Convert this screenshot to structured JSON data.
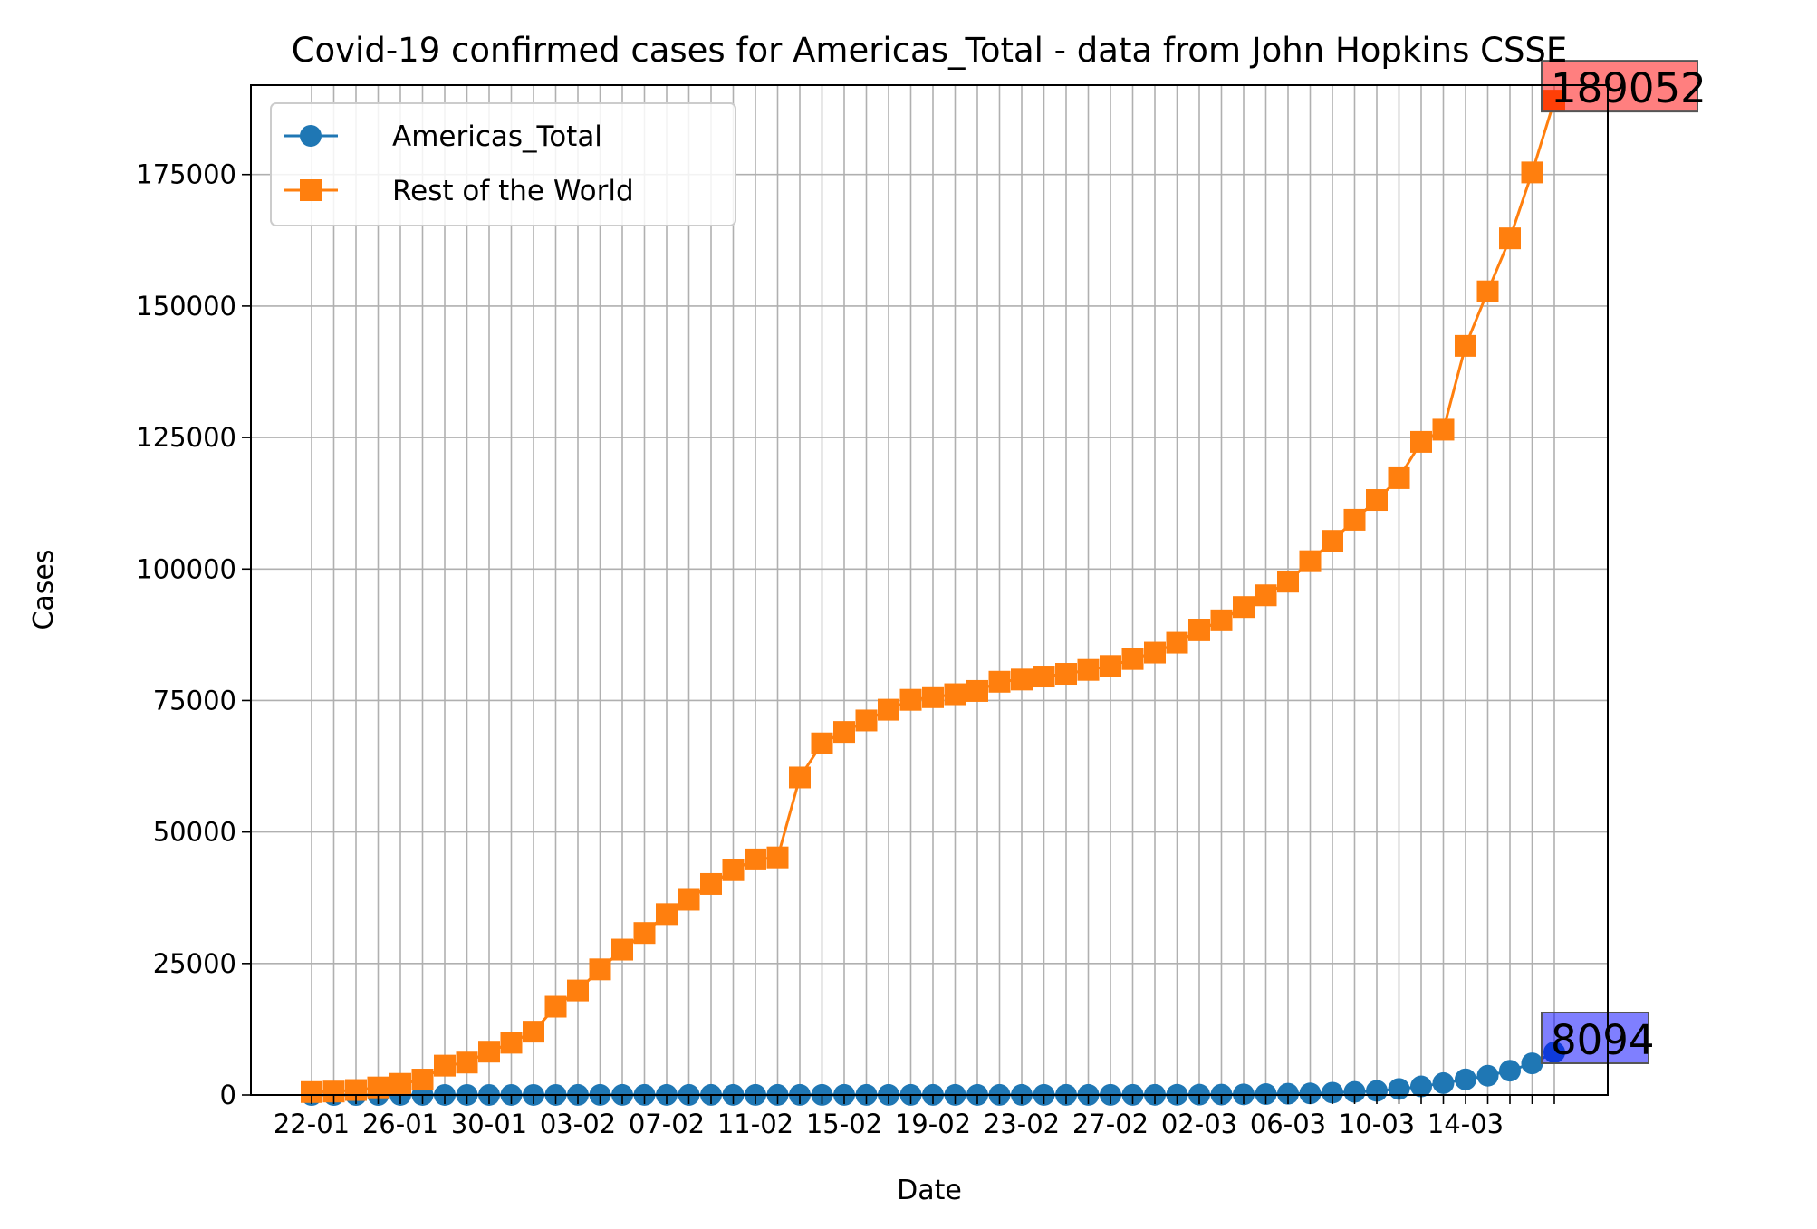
{
  "chart_data": {
    "type": "line",
    "title": "Covid-19 confirmed cases for Americas_Total - data from John Hopkins CSSE",
    "xlabel": "Date",
    "ylabel": "Cases",
    "ylim": [
      0,
      192000
    ],
    "yticks": [
      0,
      25000,
      50000,
      75000,
      100000,
      125000,
      150000,
      175000
    ],
    "grid": true,
    "legend_position": "top-left",
    "x": [
      "22-01",
      "23-01",
      "24-01",
      "25-01",
      "26-01",
      "27-01",
      "28-01",
      "29-01",
      "30-01",
      "31-01",
      "01-02",
      "02-02",
      "03-02",
      "04-02",
      "05-02",
      "06-02",
      "07-02",
      "08-02",
      "09-02",
      "10-02",
      "11-02",
      "12-02",
      "13-02",
      "14-02",
      "15-02",
      "16-02",
      "17-02",
      "18-02",
      "19-02",
      "20-02",
      "21-02",
      "22-02",
      "23-02",
      "24-02",
      "25-02",
      "26-02",
      "27-02",
      "28-02",
      "29-02",
      "01-03",
      "02-03",
      "03-03",
      "04-03",
      "05-03",
      "06-03",
      "07-03",
      "08-03",
      "09-03",
      "10-03",
      "11-03",
      "12-03",
      "13-03",
      "14-03",
      "15-03",
      "16-03",
      "17-03",
      "18-03"
    ],
    "xtick_labels": [
      "22-01",
      "26-01",
      "30-01",
      "03-02",
      "07-02",
      "11-02",
      "15-02",
      "19-02",
      "23-02",
      "27-02",
      "02-03",
      "06-03",
      "10-03",
      "14-03"
    ],
    "series": [
      {
        "name": "Americas_Total",
        "color": "#1f77b4",
        "marker": "circle",
        "values": [
          1,
          1,
          2,
          2,
          5,
          5,
          5,
          6,
          6,
          8,
          8,
          9,
          11,
          11,
          12,
          12,
          12,
          12,
          12,
          12,
          13,
          13,
          15,
          15,
          15,
          15,
          15,
          15,
          15,
          15,
          16,
          16,
          16,
          16,
          16,
          17,
          18,
          19,
          26,
          37,
          57,
          75,
          115,
          164,
          234,
          296,
          437,
          586,
          781,
          1141,
          1626,
          2250,
          2972,
          3666,
          4612,
          6006,
          8094
        ]
      },
      {
        "name": "Rest of the World",
        "color": "#ff7f0e",
        "marker": "square",
        "values": [
          554,
          652,
          939,
          1432,
          2113,
          2922,
          5573,
          6159,
          8230,
          9921,
          12030,
          16785,
          19870,
          23880,
          27630,
          30790,
          34380,
          37110,
          40130,
          42750,
          44790,
          45170,
          60360,
          66860,
          69030,
          71210,
          73250,
          75130,
          75630,
          76190,
          76810,
          78560,
          78980,
          79550,
          80070,
          80810,
          81570,
          82880,
          84110,
          86000,
          88360,
          90260,
          92780,
          95010,
          97600,
          101480,
          105350,
          109360,
          113130,
          117280,
          124170,
          126490,
          142430,
          152790,
          162870,
          175400,
          189052
        ]
      }
    ],
    "annotations": [
      {
        "text": "189052",
        "color": "#ff0000",
        "series": "Rest of the World"
      },
      {
        "text": "8094",
        "color": "#0000ff",
        "series": "Americas_Total"
      }
    ]
  }
}
